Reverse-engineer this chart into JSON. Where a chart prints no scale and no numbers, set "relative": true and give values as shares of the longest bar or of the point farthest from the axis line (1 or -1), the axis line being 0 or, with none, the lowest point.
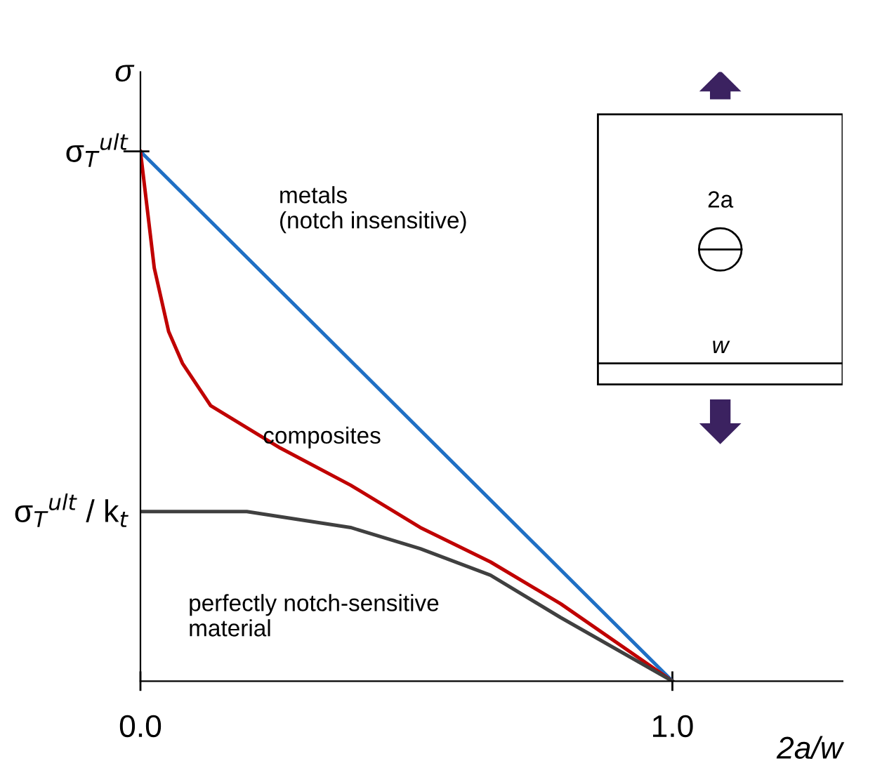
{
  "chart_data": {
    "type": "line",
    "relative": true,
    "ylabel": "σ",
    "xlabel": "2a/w",
    "xlim": [
      0,
      1.32
    ],
    "xticks": [
      {
        "value": 0,
        "label": "0.0"
      },
      {
        "value": 1,
        "label": "1.0"
      }
    ],
    "series": [
      {
        "x": [
          0,
          1
        ],
        "values": [
          1,
          0
        ],
        "color": "#1f6fc4"
      },
      {
        "x": [
          0,
          0.013,
          0.026,
          0.053,
          0.079,
          0.132,
          0.263,
          0.395,
          0.526,
          0.658,
          0.79,
          1
        ],
        "values": [
          1,
          0.89,
          0.78,
          0.66,
          0.6,
          0.52,
          0.44,
          0.37,
          0.29,
          0.225,
          0.146,
          0
        ],
        "color": "#c00000"
      },
      {
        "x": [
          0,
          0.2,
          0.395,
          0.526,
          0.658,
          0.79,
          1
        ],
        "values": [
          0.32,
          0.32,
          0.29,
          0.25,
          0.2,
          0.12,
          0
        ],
        "color": "#404040"
      }
    ],
    "annotations": [
      "σ$_{T}$$^{ult}$",
      "σ$_{T}$$^{ult}$ / k$_{t}$",
      "metals\n(notch insensitive)",
      {
        "text": "composites",
        "x": 0.23,
        "y": 0.46
      },
      "perfectly notch-sensitive\nmaterial",
      "2a",
      "w"
    ],
    "grid": false,
    "legend": false,
    "marker": "none",
    "line_style": "solid"
  }
}
